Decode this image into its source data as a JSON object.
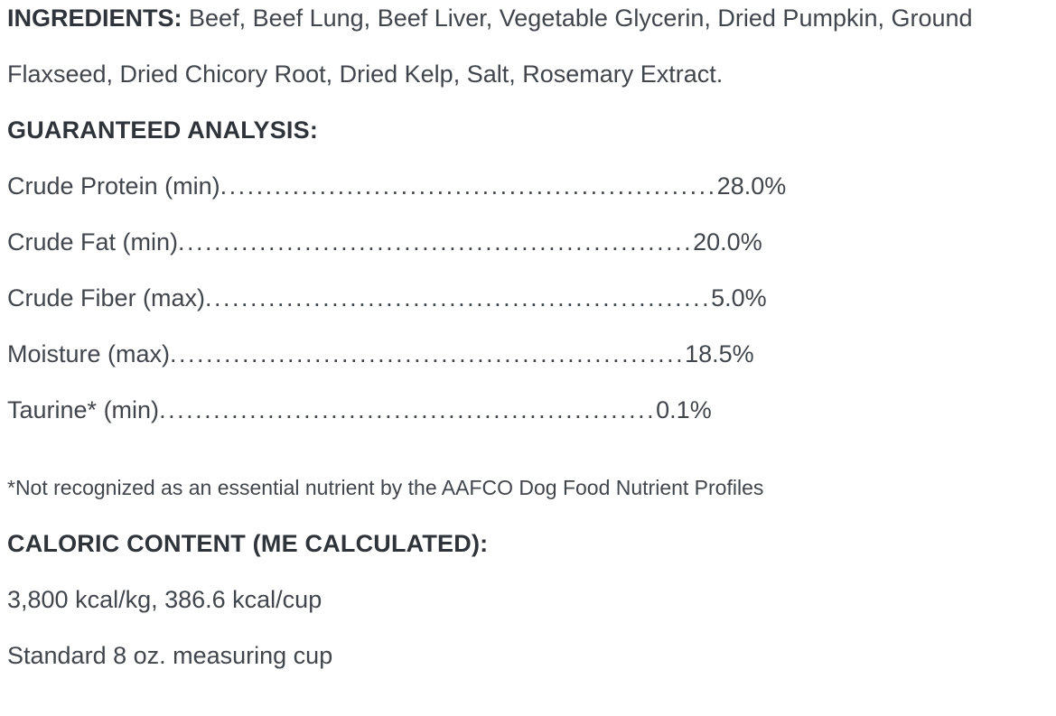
{
  "page": {
    "background": "#ffffff",
    "text_color": "#41464c",
    "heading_color": "#2f343a"
  },
  "ingredients": {
    "label": "INGREDIENTS:",
    "text": "Beef, Beef Lung, Beef Liver, Vegetable Glycerin, Dried Pumpkin, Ground Flaxseed, Dried Chicory Root, Dried Kelp, Salt, Rosemary Extract."
  },
  "guaranteed_analysis": {
    "heading": "GUARANTEED ANALYSIS:",
    "rows": [
      {
        "label": "Crude Protein (min)",
        "leader": ".......................................................",
        "value": "28.0%"
      },
      {
        "label": "Crude Fat (min)",
        "leader": ".........................................................",
        "value": "20.0%"
      },
      {
        "label": "Crude Fiber (max)",
        "leader": "........................................................",
        "value": "5.0%"
      },
      {
        "label": "Moisture (max)",
        "leader": ".........................................................",
        "value": "18.5%"
      },
      {
        "label": "Taurine* (min)",
        "leader": ".......................................................",
        "value": "0.1%"
      }
    ],
    "footnote": "*Not recognized as an essential nutrient by the AAFCO Dog Food Nutrient Profiles"
  },
  "caloric_content": {
    "heading": "CALORIC CONTENT (ME CALCULATED):",
    "kcal_line": "3,800 kcal/kg, 386.6 kcal/cup",
    "cup_line": "Standard 8 oz. measuring cup"
  }
}
